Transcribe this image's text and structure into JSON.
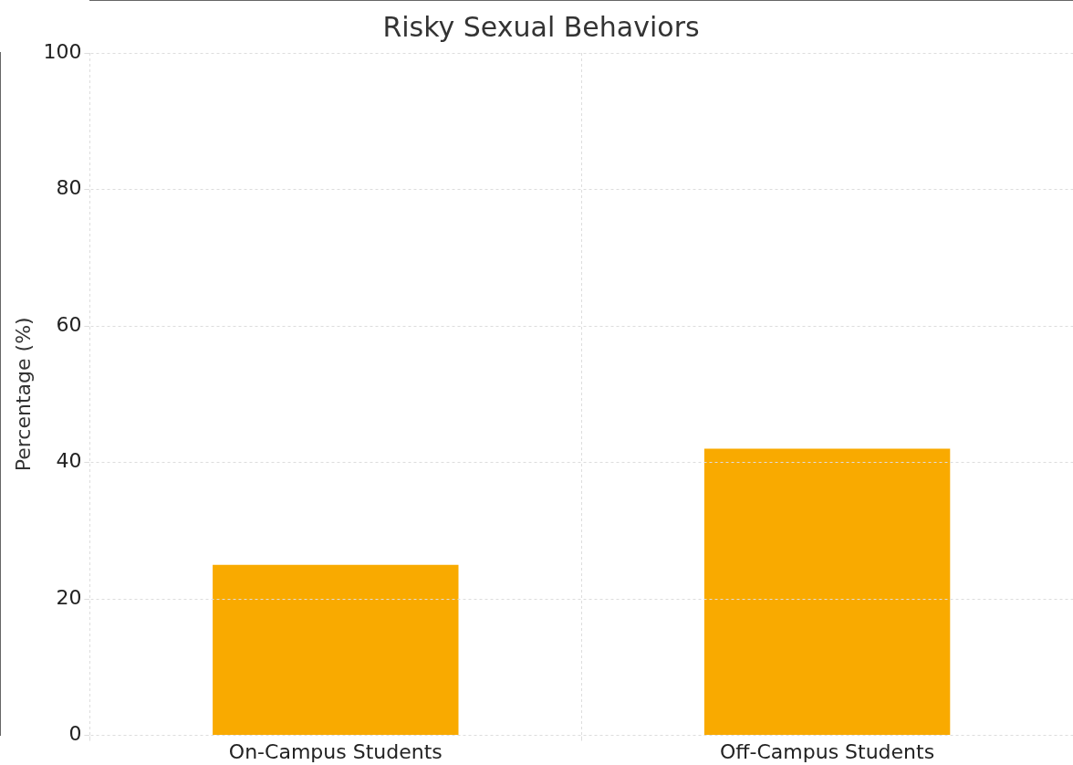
{
  "chart_data": {
    "type": "bar",
    "title": "Risky Sexual Behaviors",
    "ylabel": "Percentage (%)",
    "categories": [
      "On-Campus Students",
      "Off-Campus Students"
    ],
    "values": [
      25,
      42
    ],
    "color": "#f9aa00",
    "ylim": [
      0,
      100
    ],
    "yticks": [
      0,
      20,
      40,
      60,
      80,
      100
    ],
    "grid": true
  }
}
